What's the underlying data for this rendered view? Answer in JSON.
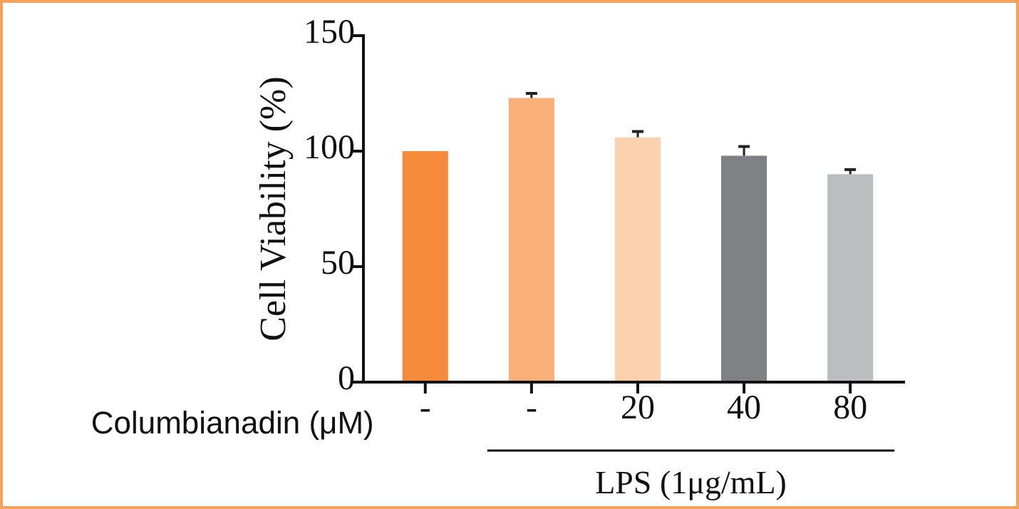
{
  "chart_data": {
    "type": "bar",
    "ylabel": "Cell Viability (%)",
    "xlabel": "Columbianadin (μM)",
    "categories": [
      "-",
      "-",
      "20",
      "40",
      "80"
    ],
    "values": [
      100,
      123,
      106,
      98,
      90
    ],
    "errors": [
      null,
      2,
      2.5,
      4,
      2
    ],
    "colors": [
      "#f68b3c",
      "#f8af79",
      "#fbd2b0",
      "#808184",
      "#bcbdbf"
    ],
    "ylim": [
      0,
      150
    ],
    "yticks": [
      0,
      50,
      100,
      150
    ],
    "grid": false,
    "annotations": [
      "LPS (1μg/mL)"
    ]
  }
}
